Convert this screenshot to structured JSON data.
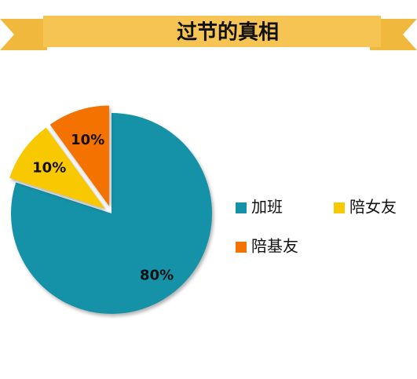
{
  "chart_data": {
    "type": "pie",
    "title": "过节的真相",
    "categories": [
      "加班",
      "陪女友",
      "陪基友"
    ],
    "values": [
      80,
      10,
      10
    ],
    "value_labels": [
      "80%",
      "10%",
      "10%"
    ],
    "colors": [
      "#1592a8",
      "#f8c800",
      "#f47200"
    ],
    "legend": "right"
  }
}
